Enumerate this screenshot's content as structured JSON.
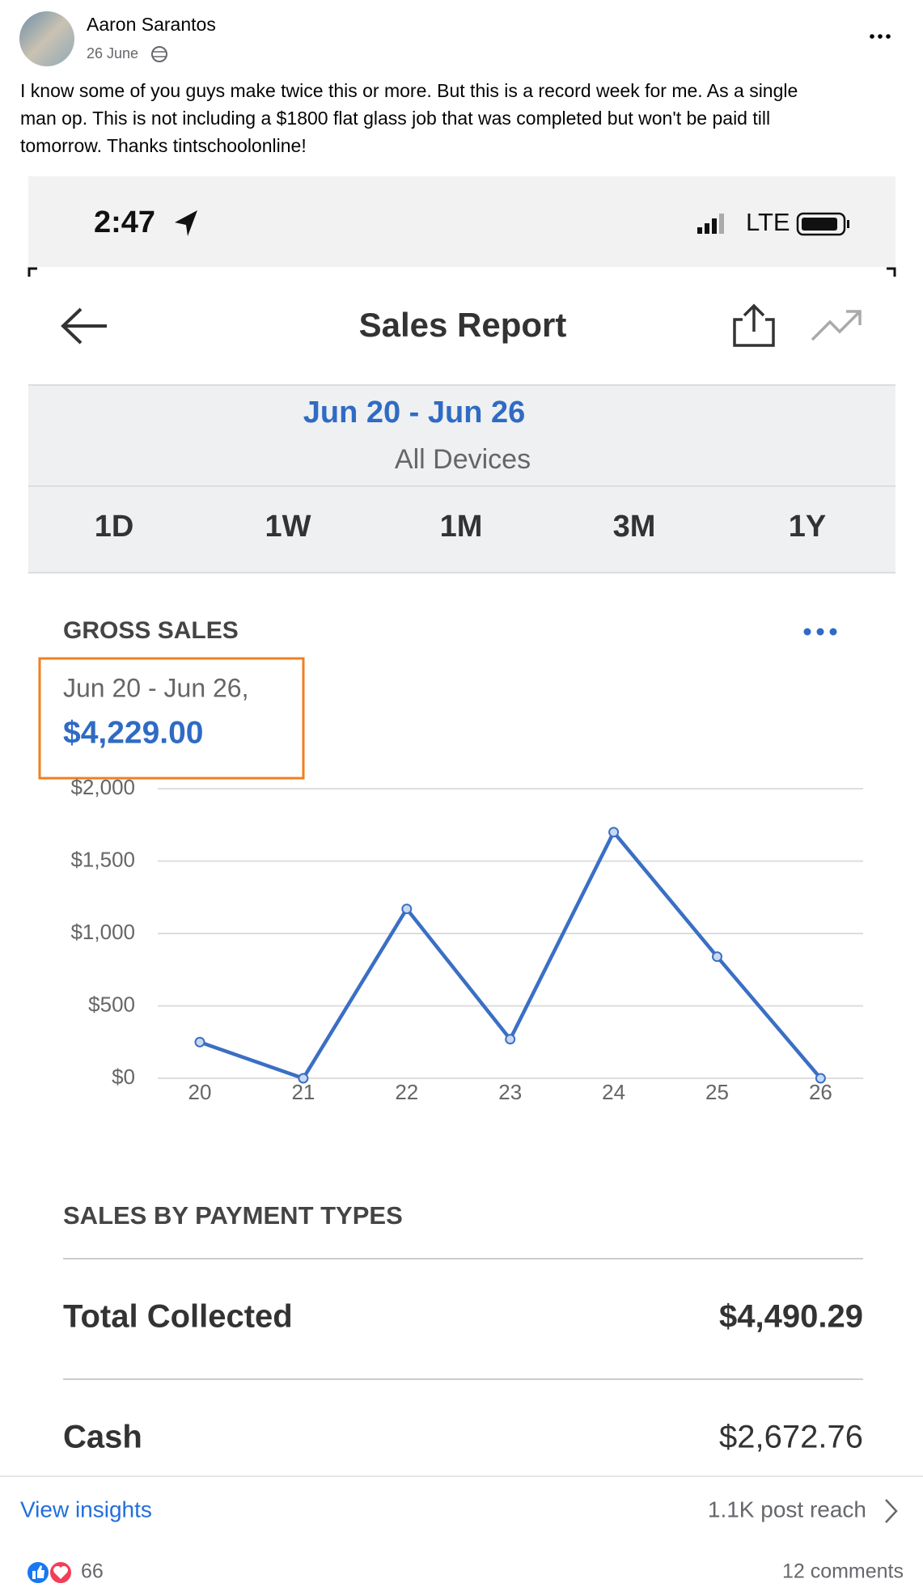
{
  "post": {
    "author": "Aaron Sarantos",
    "date": "26 June",
    "text": [
      "I know some of you guys make twice this or more.  But this is a record week for me. As a single",
      "man op.   This is not including a $1800 flat glass job that was completed but won't be paid till",
      "tomorrow. Thanks tintschoolonline!"
    ]
  },
  "status_bar": {
    "time": "2:47",
    "network": "LTE"
  },
  "app": {
    "title": "Sales Report",
    "date_range": "Jun 20 - Jun 26",
    "devices": "All Devices",
    "tabs": [
      "1D",
      "1W",
      "1M",
      "3M",
      "1Y"
    ]
  },
  "chart_data": {
    "type": "line",
    "title": "GROSS SALES",
    "subtitle": "Jun 20 - Jun 26,",
    "total": "$4,229.00",
    "categories": [
      "20",
      "21",
      "22",
      "23",
      "24",
      "25",
      "26"
    ],
    "values": [
      250,
      0,
      1170,
      270,
      1700,
      840,
      0
    ],
    "color": "#3a6fc4",
    "ylim": [
      0,
      2000
    ],
    "yticks": [
      {
        "value": 0,
        "label": "$0"
      },
      {
        "value": 500,
        "label": "$500"
      },
      {
        "value": 1000,
        "label": "$1,000"
      },
      {
        "value": 1500,
        "label": "$1,500"
      },
      {
        "value": 2000,
        "label": "$2,000"
      }
    ],
    "grid": true
  },
  "payments": {
    "title": "SALES BY PAYMENT TYPES",
    "rows": [
      [
        "Total Collected",
        "$4,490.29"
      ],
      [
        "Cash",
        "$2,672.76"
      ]
    ]
  },
  "footer": {
    "insights": "View insights",
    "reach": "1.1K post reach",
    "reactions": "66",
    "comments": "12 comments"
  }
}
